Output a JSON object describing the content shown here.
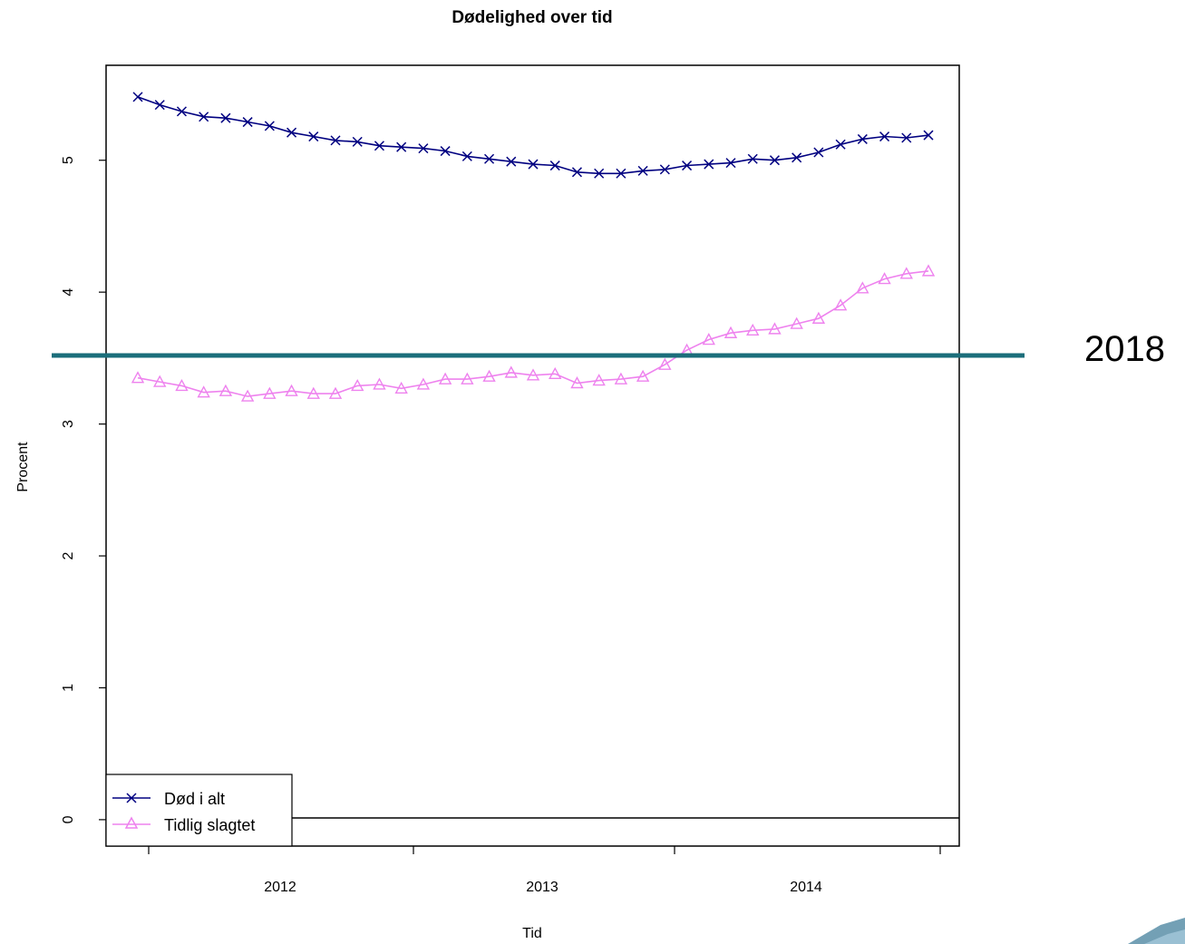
{
  "chart_data": {
    "type": "line",
    "title": "Dødelighed over tid",
    "xlabel": "Tid",
    "ylabel": "Procent",
    "ylim": [
      -0.2,
      5.72
    ],
    "y_ticks": [
      "0",
      "1",
      "2",
      "3",
      "4",
      "5"
    ],
    "x_tick_labels": [
      "2012",
      "2013",
      "2014"
    ],
    "grid": false,
    "legend_position": "bottom-left",
    "colors": {
      "series1": "#000080",
      "series2": "#ee82ee",
      "reference_line": "#1b6e7a",
      "decor": "#5a8fa8"
    },
    "series": [
      {
        "name": "Død i alt",
        "marker": "cross",
        "color": "#000080",
        "values": [
          5.48,
          5.42,
          5.37,
          5.33,
          5.32,
          5.29,
          5.26,
          5.21,
          5.18,
          5.15,
          5.14,
          5.11,
          5.1,
          5.09,
          5.07,
          5.03,
          5.01,
          4.99,
          4.97,
          4.96,
          4.91,
          4.9,
          4.9,
          4.92,
          4.93,
          4.96,
          4.97,
          4.98,
          5.01,
          5.0,
          5.02,
          5.06,
          5.12,
          5.16,
          5.18,
          5.17,
          5.19
        ]
      },
      {
        "name": "Tidlig slagtet",
        "marker": "triangle",
        "color": "#ee82ee",
        "values": [
          3.35,
          3.32,
          3.29,
          3.24,
          3.25,
          3.21,
          3.23,
          3.25,
          3.23,
          3.23,
          3.29,
          3.3,
          3.27,
          3.3,
          3.34,
          3.34,
          3.36,
          3.39,
          3.37,
          3.38,
          3.31,
          3.33,
          3.34,
          3.36,
          3.45,
          3.56,
          3.64,
          3.69,
          3.71,
          3.72,
          3.76,
          3.8,
          3.9,
          4.03,
          4.1,
          4.14,
          4.16
        ]
      }
    ],
    "annotations": [
      {
        "type": "horizontal_line",
        "y": 3.52,
        "label": "2018"
      }
    ]
  }
}
